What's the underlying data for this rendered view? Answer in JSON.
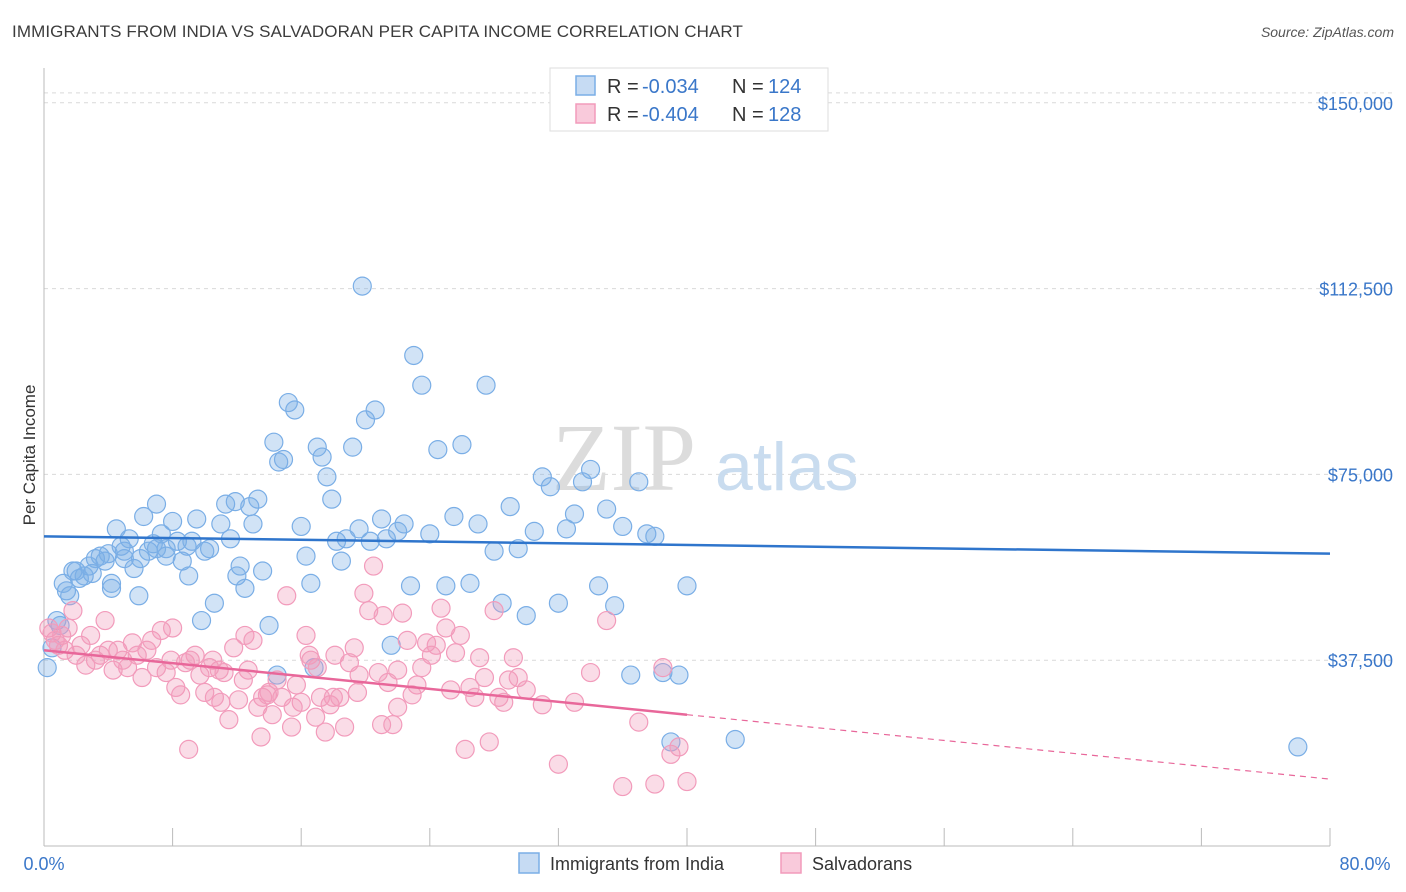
{
  "title": "IMMIGRANTS FROM INDIA VS SALVADORAN PER CAPITA INCOME CORRELATION CHART",
  "source": "Source: ZipAtlas.com",
  "watermark": {
    "zip": "ZIP",
    "atlas": "atlas"
  },
  "colors": {
    "blue": "#7aaee6",
    "blue_line": "#2f75cc",
    "pink": "#f29bbb",
    "pink_line": "#e8679a",
    "grid": "#d9d9d9",
    "tick_text": "#3a77c9"
  },
  "legend": {
    "rows": [
      {
        "r_label": "R = ",
        "r_value": "-0.034",
        "n_label": "N = ",
        "n_value": "124",
        "color": "#7aaee6"
      },
      {
        "r_label": "R = ",
        "r_value": "-0.404",
        "n_label": "N = ",
        "n_value": "128",
        "color": "#f29bbb"
      }
    ]
  },
  "bottom_legend": [
    {
      "label": "Immigrants from India",
      "color": "#7aaee6"
    },
    {
      "label": "Salvadorans",
      "color": "#f29bbb"
    }
  ],
  "chart_data": {
    "type": "scatter",
    "title": "IMMIGRANTS FROM INDIA VS SALVADORAN PER CAPITA INCOME CORRELATION CHART",
    "xlabel": "",
    "ylabel": "Per Capita Income",
    "xlim": [
      0,
      80
    ],
    "ylim": [
      0,
      155000
    ],
    "x_tick_labels": [
      "0.0%",
      "80.0%"
    ],
    "y_ticks": [
      37500,
      75000,
      112500,
      150000
    ],
    "y_tick_labels": [
      "$37,500",
      "$75,000",
      "$112,500",
      "$150,000"
    ],
    "grid": true,
    "legend_position": "top-center",
    "series": [
      {
        "name": "Immigrants from India",
        "color": "#7aaee6",
        "trend": {
          "x": [
            0,
            80
          ],
          "y": [
            62500,
            59000
          ],
          "style": "solid"
        },
        "points": [
          [
            0.2,
            36000
          ],
          [
            0.5,
            40000
          ],
          [
            0.8,
            45500
          ],
          [
            1.0,
            44500
          ],
          [
            1.2,
            53000
          ],
          [
            1.4,
            51500
          ],
          [
            1.6,
            50500
          ],
          [
            1.8,
            55500
          ],
          [
            2.0,
            55500
          ],
          [
            2.2,
            54000
          ],
          [
            2.5,
            54500
          ],
          [
            2.8,
            56500
          ],
          [
            3.0,
            55000
          ],
          [
            3.2,
            58000
          ],
          [
            3.5,
            58500
          ],
          [
            3.8,
            57500
          ],
          [
            4.0,
            59000
          ],
          [
            4.2,
            53000
          ],
          [
            4.5,
            64000
          ],
          [
            4.8,
            60500
          ],
          [
            5.0,
            58000
          ],
          [
            5.3,
            62000
          ],
          [
            5.6,
            56000
          ],
          [
            5.9,
            50500
          ],
          [
            6.2,
            66500
          ],
          [
            6.5,
            59500
          ],
          [
            6.8,
            61000
          ],
          [
            7.0,
            60000
          ],
          [
            7.3,
            63000
          ],
          [
            7.6,
            60000
          ],
          [
            8.0,
            65500
          ],
          [
            8.3,
            61500
          ],
          [
            8.6,
            57500
          ],
          [
            8.9,
            60500
          ],
          [
            9.2,
            61500
          ],
          [
            9.5,
            66000
          ],
          [
            9.8,
            45500
          ],
          [
            10.0,
            59500
          ],
          [
            10.3,
            60000
          ],
          [
            10.6,
            49000
          ],
          [
            11.0,
            65000
          ],
          [
            11.3,
            69000
          ],
          [
            11.6,
            62000
          ],
          [
            11.9,
            69500
          ],
          [
            12.2,
            56500
          ],
          [
            12.5,
            52000
          ],
          [
            12.8,
            68500
          ],
          [
            13.0,
            65000
          ],
          [
            13.3,
            70000
          ],
          [
            13.6,
            55500
          ],
          [
            14.0,
            44500
          ],
          [
            14.3,
            81500
          ],
          [
            14.6,
            77500
          ],
          [
            14.9,
            78000
          ],
          [
            15.2,
            89500
          ],
          [
            15.6,
            88000
          ],
          [
            16.0,
            64500
          ],
          [
            16.3,
            58500
          ],
          [
            16.6,
            53000
          ],
          [
            17.0,
            80500
          ],
          [
            17.3,
            78500
          ],
          [
            17.6,
            74500
          ],
          [
            17.9,
            70000
          ],
          [
            18.2,
            61500
          ],
          [
            18.5,
            57500
          ],
          [
            18.8,
            62000
          ],
          [
            19.2,
            80500
          ],
          [
            19.6,
            64000
          ],
          [
            20.0,
            86000
          ],
          [
            20.3,
            61500
          ],
          [
            20.6,
            88000
          ],
          [
            21.0,
            66000
          ],
          [
            21.3,
            62000
          ],
          [
            21.6,
            40500
          ],
          [
            22.0,
            63500
          ],
          [
            22.4,
            65000
          ],
          [
            22.8,
            52500
          ],
          [
            23.0,
            99000
          ],
          [
            23.5,
            93000
          ],
          [
            24.0,
            63000
          ],
          [
            24.5,
            80000
          ],
          [
            25.0,
            52500
          ],
          [
            25.5,
            66500
          ],
          [
            26.0,
            81000
          ],
          [
            26.5,
            53000
          ],
          [
            27.0,
            65000
          ],
          [
            27.5,
            93000
          ],
          [
            28.0,
            59500
          ],
          [
            28.5,
            49000
          ],
          [
            29.0,
            68500
          ],
          [
            29.5,
            60000
          ],
          [
            30.0,
            46500
          ],
          [
            30.5,
            63500
          ],
          [
            31.0,
            74500
          ],
          [
            31.5,
            72500
          ],
          [
            32.0,
            49000
          ],
          [
            32.5,
            64000
          ],
          [
            33.0,
            67000
          ],
          [
            33.5,
            73500
          ],
          [
            34.0,
            76000
          ],
          [
            34.5,
            52500
          ],
          [
            35.0,
            68000
          ],
          [
            35.5,
            48500
          ],
          [
            36.0,
            64500
          ],
          [
            36.5,
            34500
          ],
          [
            37.0,
            73500
          ],
          [
            37.5,
            63000
          ],
          [
            38.0,
            62500
          ],
          [
            38.5,
            35000
          ],
          [
            39.0,
            21000
          ],
          [
            39.5,
            34500
          ],
          [
            40.0,
            52500
          ],
          [
            43.0,
            21500
          ],
          [
            5.0,
            59500
          ],
          [
            6.0,
            58000
          ],
          [
            7.0,
            69000
          ],
          [
            9.0,
            54500
          ],
          [
            12.0,
            54500
          ],
          [
            14.5,
            34500
          ],
          [
            16.8,
            36000
          ],
          [
            19.8,
            113000
          ],
          [
            7.6,
            58500
          ],
          [
            78.0,
            20000
          ],
          [
            4.2,
            52000
          ]
        ]
      },
      {
        "name": "Salvadorans",
        "color": "#f29bbb",
        "trend": {
          "x": [
            0,
            40
          ],
          "y": [
            39500,
            26500
          ],
          "style": "solid",
          "dashed_extension": {
            "x": [
              40,
              80
            ],
            "y": [
              26500,
              13500
            ]
          }
        },
        "points": [
          [
            0.3,
            44000
          ],
          [
            0.5,
            43000
          ],
          [
            0.7,
            41500
          ],
          [
            0.9,
            40500
          ],
          [
            1.1,
            42500
          ],
          [
            1.3,
            39500
          ],
          [
            1.5,
            44000
          ],
          [
            1.8,
            47500
          ],
          [
            2.0,
            38500
          ],
          [
            2.3,
            40500
          ],
          [
            2.6,
            36500
          ],
          [
            2.9,
            42500
          ],
          [
            3.2,
            37500
          ],
          [
            3.5,
            38500
          ],
          [
            3.8,
            45500
          ],
          [
            4.0,
            39500
          ],
          [
            4.3,
            35500
          ],
          [
            4.6,
            39500
          ],
          [
            4.9,
            37500
          ],
          [
            5.2,
            36000
          ],
          [
            5.5,
            41000
          ],
          [
            5.8,
            38500
          ],
          [
            6.1,
            34000
          ],
          [
            6.4,
            39500
          ],
          [
            6.7,
            41500
          ],
          [
            7.0,
            36000
          ],
          [
            7.3,
            43500
          ],
          [
            7.6,
            35000
          ],
          [
            7.9,
            37500
          ],
          [
            8.2,
            32000
          ],
          [
            8.5,
            30500
          ],
          [
            8.8,
            37000
          ],
          [
            9.1,
            37500
          ],
          [
            9.4,
            38500
          ],
          [
            9.7,
            34500
          ],
          [
            10.0,
            31000
          ],
          [
            10.3,
            36000
          ],
          [
            10.6,
            30000
          ],
          [
            10.9,
            35500
          ],
          [
            11.2,
            35000
          ],
          [
            11.5,
            25500
          ],
          [
            11.8,
            40000
          ],
          [
            12.1,
            29500
          ],
          [
            12.4,
            33500
          ],
          [
            12.7,
            35500
          ],
          [
            13.0,
            41500
          ],
          [
            13.3,
            28000
          ],
          [
            13.6,
            30000
          ],
          [
            13.9,
            30500
          ],
          [
            14.2,
            26500
          ],
          [
            14.5,
            33500
          ],
          [
            14.8,
            30000
          ],
          [
            15.1,
            50500
          ],
          [
            15.4,
            24000
          ],
          [
            15.7,
            32500
          ],
          [
            16.0,
            29000
          ],
          [
            16.3,
            42500
          ],
          [
            16.6,
            37500
          ],
          [
            16.9,
            26000
          ],
          [
            17.2,
            30000
          ],
          [
            17.5,
            23000
          ],
          [
            17.8,
            28500
          ],
          [
            18.1,
            38500
          ],
          [
            18.4,
            30000
          ],
          [
            18.7,
            24000
          ],
          [
            19.0,
            37000
          ],
          [
            19.3,
            40000
          ],
          [
            19.6,
            34500
          ],
          [
            19.9,
            51000
          ],
          [
            20.2,
            47500
          ],
          [
            20.5,
            56500
          ],
          [
            20.8,
            35000
          ],
          [
            21.1,
            46500
          ],
          [
            21.4,
            33000
          ],
          [
            21.7,
            24500
          ],
          [
            22.0,
            35500
          ],
          [
            22.3,
            47000
          ],
          [
            22.6,
            41500
          ],
          [
            22.9,
            30500
          ],
          [
            23.2,
            32500
          ],
          [
            23.5,
            36000
          ],
          [
            23.8,
            41000
          ],
          [
            24.1,
            38500
          ],
          [
            24.4,
            40500
          ],
          [
            24.7,
            48000
          ],
          [
            25.0,
            44000
          ],
          [
            25.3,
            31500
          ],
          [
            25.6,
            39000
          ],
          [
            25.9,
            42500
          ],
          [
            26.2,
            19500
          ],
          [
            26.5,
            32000
          ],
          [
            26.8,
            30000
          ],
          [
            27.1,
            38000
          ],
          [
            27.4,
            34000
          ],
          [
            27.7,
            21000
          ],
          [
            28.0,
            47500
          ],
          [
            28.3,
            30000
          ],
          [
            28.6,
            29000
          ],
          [
            28.9,
            33500
          ],
          [
            29.2,
            38000
          ],
          [
            29.5,
            34000
          ],
          [
            30.0,
            31500
          ],
          [
            31.0,
            28500
          ],
          [
            32.0,
            16500
          ],
          [
            33.0,
            29000
          ],
          [
            34.0,
            35000
          ],
          [
            35.0,
            45500
          ],
          [
            36.0,
            12000
          ],
          [
            37.0,
            25000
          ],
          [
            38.0,
            12500
          ],
          [
            38.5,
            36000
          ],
          [
            39.0,
            18500
          ],
          [
            39.5,
            20000
          ],
          [
            40.0,
            13000
          ],
          [
            8.0,
            44000
          ],
          [
            9.0,
            19500
          ],
          [
            10.5,
            37500
          ],
          [
            11.0,
            29000
          ],
          [
            12.5,
            42500
          ],
          [
            13.5,
            22000
          ],
          [
            14.0,
            31000
          ],
          [
            15.5,
            28000
          ],
          [
            16.5,
            38500
          ],
          [
            17.0,
            36000
          ],
          [
            18.0,
            30000
          ],
          [
            19.5,
            31000
          ],
          [
            21.0,
            24500
          ],
          [
            22.0,
            28000
          ]
        ]
      }
    ]
  }
}
